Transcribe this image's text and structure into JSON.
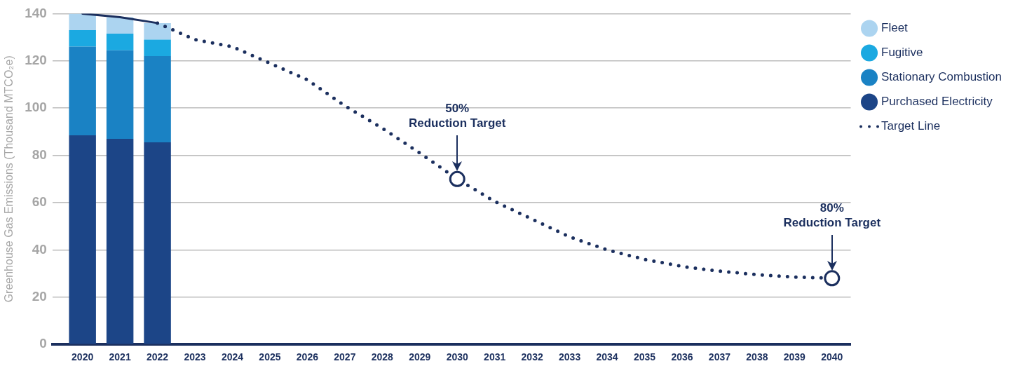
{
  "chart_data": {
    "type": "bar",
    "stacked": true,
    "ylabel": "Greenhouse Gas Emissions (Thousand MTCO₂e)",
    "x": [
      2020,
      2021,
      2022
    ],
    "series": [
      {
        "name": "Purchased Electricity",
        "color": "#1c4587",
        "values": [
          88.5,
          87,
          85.5
        ]
      },
      {
        "name": "Stationary Combustion",
        "color": "#1a82c4",
        "values": [
          37.5,
          37.5,
          36.5
        ]
      },
      {
        "name": "Fugitive",
        "color": "#1ba9e1",
        "values": [
          7,
          7,
          7
        ]
      },
      {
        "name": "Fleet",
        "color": "#acd4f0",
        "values": [
          7,
          7,
          7
        ]
      },
      {
        "type": "line",
        "color": "#1b2f5e",
        "line_style": "solid",
        "x": [
          2020,
          2021,
          2022
        ],
        "values": [
          140,
          138.5,
          136
        ]
      },
      {
        "type": "line",
        "name": "Target Line",
        "color": "#1b2f5e",
        "line_style": "dotted",
        "x": [
          2022,
          2023,
          2024,
          2025,
          2026,
          2027,
          2028,
          2029,
          2030,
          2031,
          2032,
          2033,
          2034,
          2035,
          2036,
          2037,
          2038,
          2039,
          2040
        ],
        "values": [
          136,
          129,
          126,
          119,
          112,
          101,
          91.5,
          81,
          70,
          60.5,
          53,
          45.5,
          40,
          36,
          33,
          31,
          29.5,
          28.5,
          28
        ]
      },
      {
        "type": "scatter",
        "color": "#1b2f5e",
        "marker": "circle",
        "x": [
          2030,
          2040
        ],
        "values": [
          70,
          28
        ]
      }
    ],
    "xlim": [
      2019.2,
      2040.5
    ],
    "xticks": [
      2020,
      2021,
      2022,
      2023,
      2024,
      2025,
      2026,
      2027,
      2028,
      2029,
      2030,
      2031,
      2032,
      2033,
      2034,
      2035,
      2036,
      2037,
      2038,
      2039,
      2040
    ],
    "ylim": [
      0,
      140
    ],
    "yticks": [
      0,
      20,
      40,
      60,
      80,
      100,
      120,
      140
    ],
    "grid": "y",
    "legend": "top right",
    "annotations": [
      "50%\nReduction Target",
      "80%\nReduction Target"
    ]
  }
}
